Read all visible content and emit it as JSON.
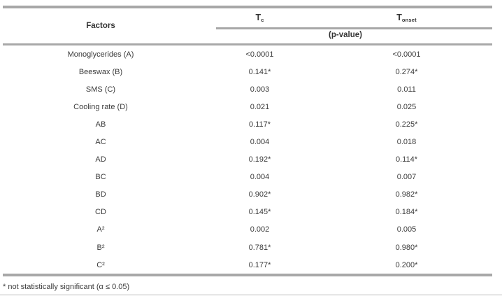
{
  "table": {
    "header": {
      "factors_label": "Factors",
      "col_tc": {
        "base": "T",
        "sub": "c"
      },
      "col_tonset": {
        "base": "T",
        "sub": "onset"
      },
      "pvalue_label": "(p-value)"
    },
    "rows": [
      {
        "factor": "Monoglycerides (A)",
        "tc": "<0.0001",
        "tonset": "<0.0001"
      },
      {
        "factor": "Beeswax (B)",
        "tc": "0.141*",
        "tonset": "0.274*"
      },
      {
        "factor": "SMS (C)",
        "tc": "0.003",
        "tonset": "0.011"
      },
      {
        "factor": "Cooling rate (D)",
        "tc": "0.021",
        "tonset": "0.025"
      },
      {
        "factor": "AB",
        "tc": "0.117*",
        "tonset": "0.225*"
      },
      {
        "factor": "AC",
        "tc": "0.004",
        "tonset": "0.018"
      },
      {
        "factor": "AD",
        "tc": "0.192*",
        "tonset": "0.114*"
      },
      {
        "factor": "BC",
        "tc": "0.004",
        "tonset": "0.007"
      },
      {
        "factor": "BD",
        "tc": "0.902*",
        "tonset": "0.982*"
      },
      {
        "factor": "CD",
        "tc": "0.145*",
        "tonset": "0.184*"
      },
      {
        "factor": "A²",
        "tc": "0.002",
        "tonset": "0.005"
      },
      {
        "factor": "B²",
        "tc": "0.781*",
        "tonset": "0.980*"
      },
      {
        "factor": "C²",
        "tc": "0.177*",
        "tonset": "0.200*"
      }
    ]
  },
  "footnote": "* not statistically significant (α ≤ 0.05)",
  "colors": {
    "rule": "#a8a8a8",
    "text": "#3b3b3b",
    "heading": "#333333"
  }
}
